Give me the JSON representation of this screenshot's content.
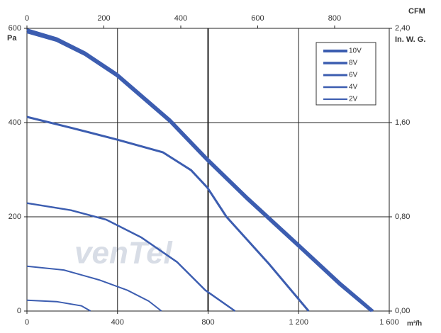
{
  "chart_data": {
    "type": "line",
    "x_label": "m³/h",
    "y_label": "Pa",
    "x2_label": "CFM",
    "y2_label": "In. W. G.",
    "watermark": "venTel",
    "xlim": [
      0,
      1600
    ],
    "xticks": [
      0,
      400,
      800,
      {
        "value": 1200,
        "label": "1 200"
      },
      {
        "value": 1600,
        "label": "1 600"
      }
    ],
    "ylim": [
      0,
      600
    ],
    "yticks": [
      0,
      200,
      400,
      600
    ],
    "x2lim": [
      0,
      942
    ],
    "x2ticks": [
      0,
      200,
      400,
      600,
      800
    ],
    "y2lim": [
      0,
      2.4
    ],
    "y2ticks": [
      {
        "value": 0,
        "label": "0,00"
      },
      {
        "value": 0.8,
        "label": "0,80"
      },
      {
        "value": 1.6,
        "label": "1,60"
      },
      {
        "value": 2.4,
        "label": "2,40"
      }
    ],
    "grid": true,
    "legend": "upper right",
    "series": [
      {
        "name": "10V",
        "color": "#3c5db0",
        "x": [
          0,
          131,
          256,
          397,
          631,
          797,
          975,
          1197,
          1381,
          1528
        ],
        "values": [
          597,
          578,
          548,
          503,
          406,
          323,
          240,
          142,
          60,
          0
        ]
      },
      {
        "name": "8V",
        "color": "#3c5db0",
        "x": [
          0,
          131,
          256,
          397,
          631,
          797,
          975,
          1197,
          1381,
          1520
        ],
        "values": [
          592,
          574,
          544,
          499,
          402,
          319,
          236,
          138,
          56,
          0
        ]
      },
      {
        "name": "6V",
        "color": "#3c5db0",
        "x": [
          0,
          194,
          397,
          600,
          725,
          797,
          881,
          1069,
          1244
        ],
        "values": [
          412,
          389,
          364,
          337,
          299,
          262,
          200,
          100,
          0
        ]
      },
      {
        "name": "4V",
        "color": "#3c5db0",
        "x": [
          0,
          194,
          350,
          506,
          663,
          788,
          919
        ],
        "values": [
          229,
          214,
          194,
          156,
          104,
          44,
          0
        ]
      },
      {
        "name": "2V",
        "color": "#3c5db0",
        "x": [
          0,
          163,
          319,
          444,
          538,
          594
        ],
        "values": [
          95,
          87,
          66,
          44,
          21,
          0
        ]
      },
      {
        "name": null,
        "color": "#3c5db0",
        "x": [
          0,
          131,
          241,
          281
        ],
        "values": [
          23,
          20,
          11,
          0
        ]
      }
    ]
  }
}
